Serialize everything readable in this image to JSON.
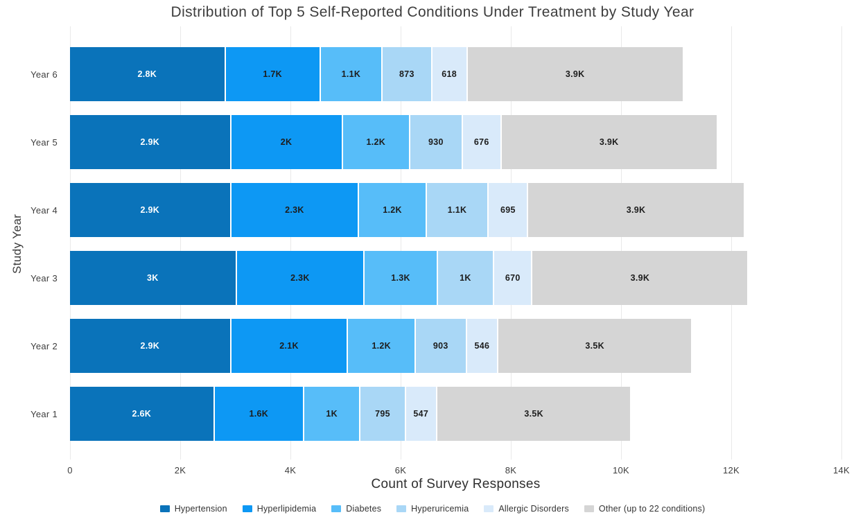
{
  "title": "Distribution of Top 5 Self-Reported Conditions Under Treatment by Study Year",
  "chart_data": {
    "type": "bar",
    "orientation": "horizontal",
    "stacked": true,
    "title": "Distribution of Top 5 Self-Reported Conditions Under Treatment by Study Year",
    "xlabel": "Count of Survey Responses",
    "ylabel": "Study Year",
    "categories": [
      "Year 6",
      "Year 5",
      "Year 4",
      "Year 3",
      "Year 2",
      "Year 1"
    ],
    "series": [
      {
        "name": "Hypertension",
        "color": "#0a73ba",
        "label_color": "#ffffff",
        "values": [
          2800,
          2900,
          2900,
          3000,
          2900,
          2600
        ],
        "labels": [
          "2.8K",
          "2.9K",
          "2.9K",
          "3K",
          "2.9K",
          "2.6K"
        ]
      },
      {
        "name": "Hyperlipidemia",
        "color": "#0d98f4",
        "label_color": "#1d1d1d",
        "values": [
          1700,
          2000,
          2300,
          2300,
          2100,
          1600
        ],
        "labels": [
          "1.7K",
          "2K",
          "2.3K",
          "2.3K",
          "2.1K",
          "1.6K"
        ]
      },
      {
        "name": "Diabetes",
        "color": "#57bdf9",
        "label_color": "#1d1d1d",
        "values": [
          1100,
          1200,
          1200,
          1300,
          1200,
          1000
        ],
        "labels": [
          "1.1K",
          "1.2K",
          "1.2K",
          "1.3K",
          "1.2K",
          "1K"
        ]
      },
      {
        "name": "Hyperuricemia",
        "color": "#a9d7f6",
        "label_color": "#1d1d1d",
        "values": [
          873,
          930,
          1100,
          1000,
          903,
          795
        ],
        "labels": [
          "873",
          "930",
          "1.1K",
          "1K",
          "903",
          "795"
        ]
      },
      {
        "name": "Allergic Disorders",
        "color": "#d9eafa",
        "label_color": "#1d1d1d",
        "values": [
          618,
          676,
          695,
          670,
          546,
          547
        ],
        "labels": [
          "618",
          "676",
          "695",
          "670",
          "546",
          "547"
        ]
      },
      {
        "name": "Other (up to 22 conditions)",
        "color": "#d5d5d5",
        "label_color": "#1d1d1d",
        "values": [
          3900,
          3900,
          3900,
          3900,
          3500,
          3500
        ],
        "labels": [
          "3.9K",
          "3.9K",
          "3.9K",
          "3.9K",
          "3.5K",
          "3.5K"
        ]
      }
    ],
    "x_ticks": [
      "0",
      "2K",
      "4K",
      "6K",
      "8K",
      "10K",
      "12K",
      "14K"
    ],
    "xlim": [
      0,
      14000
    ],
    "grid": "vertical",
    "legend_position": "bottom",
    "gridline_color": "#e9e9e9"
  }
}
